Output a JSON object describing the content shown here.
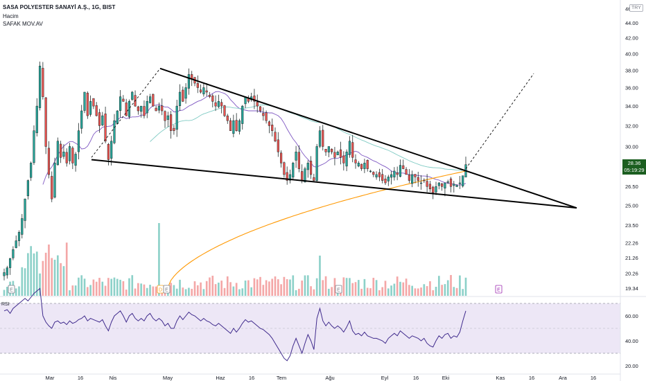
{
  "header": {
    "title": "SASA POLYESTER SANAYİ A.Ş., 1G, BIST",
    "volume_label": "Hacim",
    "indicator_label": "SAFAK MOV.AV"
  },
  "currency_badge": "TRY",
  "last_price": {
    "price": "28.36",
    "countdown": "05:19:29"
  },
  "colors": {
    "up": "#26a69a",
    "down": "#ef5350",
    "vol_up": "#8dd1c9",
    "vol_down": "#f4a7a7",
    "ma_fast": "#7e57c2",
    "ma_mid": "#80cbc4",
    "ma_slow": "#ff9800",
    "rsi": "#3f2a8c",
    "rsi_band": "#ede7f6",
    "trendline": "#000000"
  },
  "chart_data": [
    {
      "type": "candlestick",
      "title": "SASA POLYESTER SANAYİ A.Ş., 1G, BIST",
      "y_axis_ticks": [
        19.34,
        20.26,
        21.26,
        22.26,
        23.5,
        25.0,
        26.5,
        28.0,
        30.0,
        32.0,
        34.0,
        36.0,
        38.0,
        40.0,
        42.0,
        44.0
      ],
      "y_axis_top_partial": "46",
      "y_scale": "log",
      "x_axis_labels": [
        "Mar",
        "16",
        "Nis",
        "May",
        "Haz",
        "16",
        "Tem",
        "Ağu",
        "Eyl",
        "16",
        "Eki",
        "Kas",
        "16",
        "Ara",
        "16"
      ],
      "close_series_estimated": [
        20.3,
        20.6,
        21.2,
        21.8,
        22.4,
        23.0,
        24.0,
        25.5,
        27.0,
        28.5,
        31.5,
        34.0,
        38.5,
        35.0,
        30.0,
        27.5,
        25.5,
        28.5,
        30.5,
        29.0,
        29.5,
        28.5,
        30.0,
        28.5,
        29.3,
        31.5,
        33.5,
        35.5,
        33.0,
        34.5,
        34.0,
        33.0,
        32.0,
        33.0,
        30.5,
        28.8,
        30.5,
        32.5,
        33.5,
        35.0,
        34.5,
        33.0,
        34.5,
        35.5,
        34.0,
        33.5,
        34.0,
        33.0,
        34.5,
        35.0,
        34.0,
        33.5,
        34.0,
        33.5,
        32.5,
        33.0,
        31.5,
        31.5,
        34.0,
        35.5,
        34.5,
        36.0,
        37.5,
        37.0,
        36.5,
        36.0,
        35.5,
        36.0,
        35.5,
        35.0,
        34.5,
        34.0,
        34.5,
        34.0,
        33.0,
        32.5,
        31.5,
        32.5,
        31.5,
        32.5,
        34.0,
        35.0,
        34.5,
        35.0,
        34.5,
        34.0,
        33.5,
        33.0,
        32.5,
        32.0,
        31.5,
        30.5,
        29.5,
        28.5,
        27.5,
        27.0,
        27.5,
        28.5,
        29.5,
        28.0,
        27.0,
        28.0,
        28.5,
        27.5,
        27.0,
        30.0,
        31.5,
        30.0,
        29.5,
        30.0,
        29.5,
        29.0,
        29.5,
        29.0,
        28.5,
        29.5,
        30.5,
        29.0,
        28.5,
        28.5,
        28.0,
        28.5,
        28.0,
        27.8,
        27.5,
        27.5,
        27.3,
        27.0,
        26.8,
        27.3,
        27.5,
        27.8,
        27.5,
        28.3,
        28.0,
        27.5,
        27.0,
        27.5,
        27.3,
        27.0,
        26.8,
        27.0,
        26.5,
        26.3,
        26.0,
        26.5,
        26.8,
        26.5,
        26.8,
        26.9,
        26.5,
        26.7,
        26.6,
        26.8,
        27.4,
        28.36
      ],
      "volume_bars_count": 154,
      "event_markers": [
        "E",
        "D",
        "E",
        "E",
        "E"
      ],
      "moving_averages": [
        "fast",
        "mid",
        "slow"
      ],
      "trendlines": [
        "descending-resistance",
        "descending-support",
        "projection-dashed"
      ]
    },
    {
      "type": "line",
      "title": "RSI",
      "y_axis_ticks": [
        20.0,
        40.0,
        60.0
      ],
      "band": [
        30,
        70
      ],
      "values_estimated": [
        64,
        65,
        62,
        66,
        68,
        70,
        72,
        74,
        72,
        75,
        78,
        80,
        82,
        60,
        55,
        52,
        50,
        55,
        56,
        54,
        55,
        53,
        56,
        54,
        55,
        57,
        58,
        60,
        56,
        58,
        57,
        56,
        55,
        57,
        52,
        48,
        55,
        60,
        62,
        64,
        60,
        55,
        60,
        62,
        58,
        56,
        58,
        56,
        60,
        62,
        58,
        56,
        58,
        56,
        52,
        54,
        50,
        50,
        56,
        60,
        57,
        60,
        63,
        61,
        60,
        58,
        56,
        58,
        56,
        55,
        53,
        52,
        54,
        52,
        50,
        48,
        46,
        50,
        47,
        50,
        54,
        57,
        55,
        56,
        54,
        52,
        50,
        49,
        47,
        45,
        42,
        38,
        34,
        30,
        26,
        24,
        28,
        36,
        42,
        36,
        30,
        38,
        45,
        40,
        33,
        58,
        66,
        56,
        52,
        55,
        52,
        50,
        52,
        50,
        47,
        51,
        56,
        48,
        45,
        46,
        44,
        47,
        44,
        43,
        42,
        42,
        41,
        40,
        38,
        42,
        44,
        46,
        44,
        48,
        46,
        44,
        42,
        44,
        43,
        42,
        40,
        42,
        38,
        36,
        35,
        40,
        44,
        42,
        45,
        46,
        42,
        44,
        43,
        47,
        56,
        64
      ]
    }
  ]
}
